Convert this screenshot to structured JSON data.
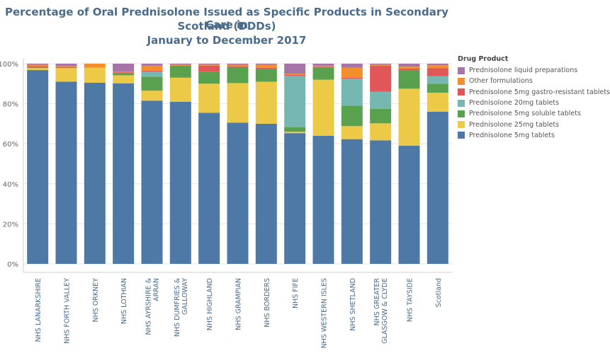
{
  "title_lines": [
    "Percentage of Oral Prednisolone Issued as Specific Products in Secondary Care in",
    "Scotland (DDDs)",
    "January to December 2017"
  ],
  "legend": {
    "title": "Drug Product",
    "items": [
      {
        "label": "Prednisolone liquid preparations",
        "color": "#a774a8"
      },
      {
        "label": "Other formulations",
        "color": "#f28e2b"
      },
      {
        "label": "Prednisolone 5mg gastro-resistant tablets",
        "color": "#e15759"
      },
      {
        "label": "Prednisolone 20mg tablets",
        "color": "#76b7b2"
      },
      {
        "label": "Prednisolone 5mg soluble tablets",
        "color": "#59a14f"
      },
      {
        "label": "Prednisolone 25mg tablets",
        "color": "#edc948"
      },
      {
        "label": "Prednisolone 5mg tablets",
        "color": "#4e79a7"
      }
    ]
  },
  "chart_data": {
    "type": "bar",
    "stacked": true,
    "categories": [
      "NHS LANARKSHIRE",
      "NHS FORTH VALLEY",
      "NHS ORKNEY",
      "NHS LOTHIAN",
      "NHS AYRSHIRE & ARRAN",
      "NHS DUMFRIES & GALLOWAY",
      "NHS HIGHLAND",
      "NHS GRAMPIAN",
      "NHS BORDERS",
      "NHS FIFE",
      "NHS WESTERN ISLES",
      "NHS SHETLAND",
      "NHS GREATER GLASGOW & CLYDE",
      "NHS TAYSIDE",
      "Scotland"
    ],
    "series": [
      {
        "name": "Prednisolone 5mg tablets",
        "color": "#4e79a7",
        "values": [
          96.8,
          91.0,
          90.5,
          90.2,
          81.5,
          81.0,
          75.5,
          70.5,
          70.0,
          65.3,
          64.0,
          62.3,
          61.7,
          59.0,
          76.0
        ]
      },
      {
        "name": "Prednisolone 25mg tablets",
        "color": "#edc948",
        "values": [
          1.0,
          6.8,
          7.5,
          4.0,
          5.0,
          12.0,
          14.5,
          19.8,
          21.0,
          0.7,
          28.0,
          6.5,
          8.5,
          28.5,
          9.5
        ]
      },
      {
        "name": "Prednisolone 5mg soluble tablets",
        "color": "#59a14f",
        "values": [
          0.5,
          0.0,
          0.0,
          1.0,
          7.0,
          6.0,
          6.0,
          8.0,
          6.5,
          2.2,
          6.0,
          10.2,
          7.3,
          9.0,
          4.5
        ]
      },
      {
        "name": "Prednisolone 20mg tablets",
        "color": "#76b7b2",
        "values": [
          0.0,
          0.0,
          0.0,
          0.0,
          2.5,
          0.0,
          0.0,
          0.0,
          0.0,
          25.8,
          0.0,
          13.5,
          8.5,
          0.0,
          3.7
        ]
      },
      {
        "name": "Prednisolone 5mg gastro-resistant tablets",
        "color": "#e15759",
        "values": [
          0.5,
          0.5,
          0.0,
          0.5,
          0.5,
          0.0,
          3.0,
          0.5,
          0.5,
          0.5,
          0.5,
          0.5,
          13.0,
          1.0,
          4.0
        ]
      },
      {
        "name": "Other formulations",
        "color": "#f28e2b",
        "values": [
          0.7,
          0.5,
          2.0,
          0.3,
          2.5,
          0.5,
          0.5,
          0.7,
          1.5,
          0.5,
          0.5,
          5.0,
          0.5,
          1.0,
          1.5
        ]
      },
      {
        "name": "Prednisolone liquid preparations",
        "color": "#a774a8",
        "values": [
          0.5,
          1.2,
          0.0,
          4.0,
          1.0,
          0.5,
          0.5,
          0.5,
          0.5,
          5.0,
          1.0,
          2.0,
          0.5,
          1.5,
          0.8
        ]
      }
    ],
    "y_ticks": [
      "0%",
      "20%",
      "40%",
      "60%",
      "80%",
      "100%"
    ],
    "ylim": [
      0,
      100
    ],
    "grid": true,
    "legend_position": "right"
  }
}
